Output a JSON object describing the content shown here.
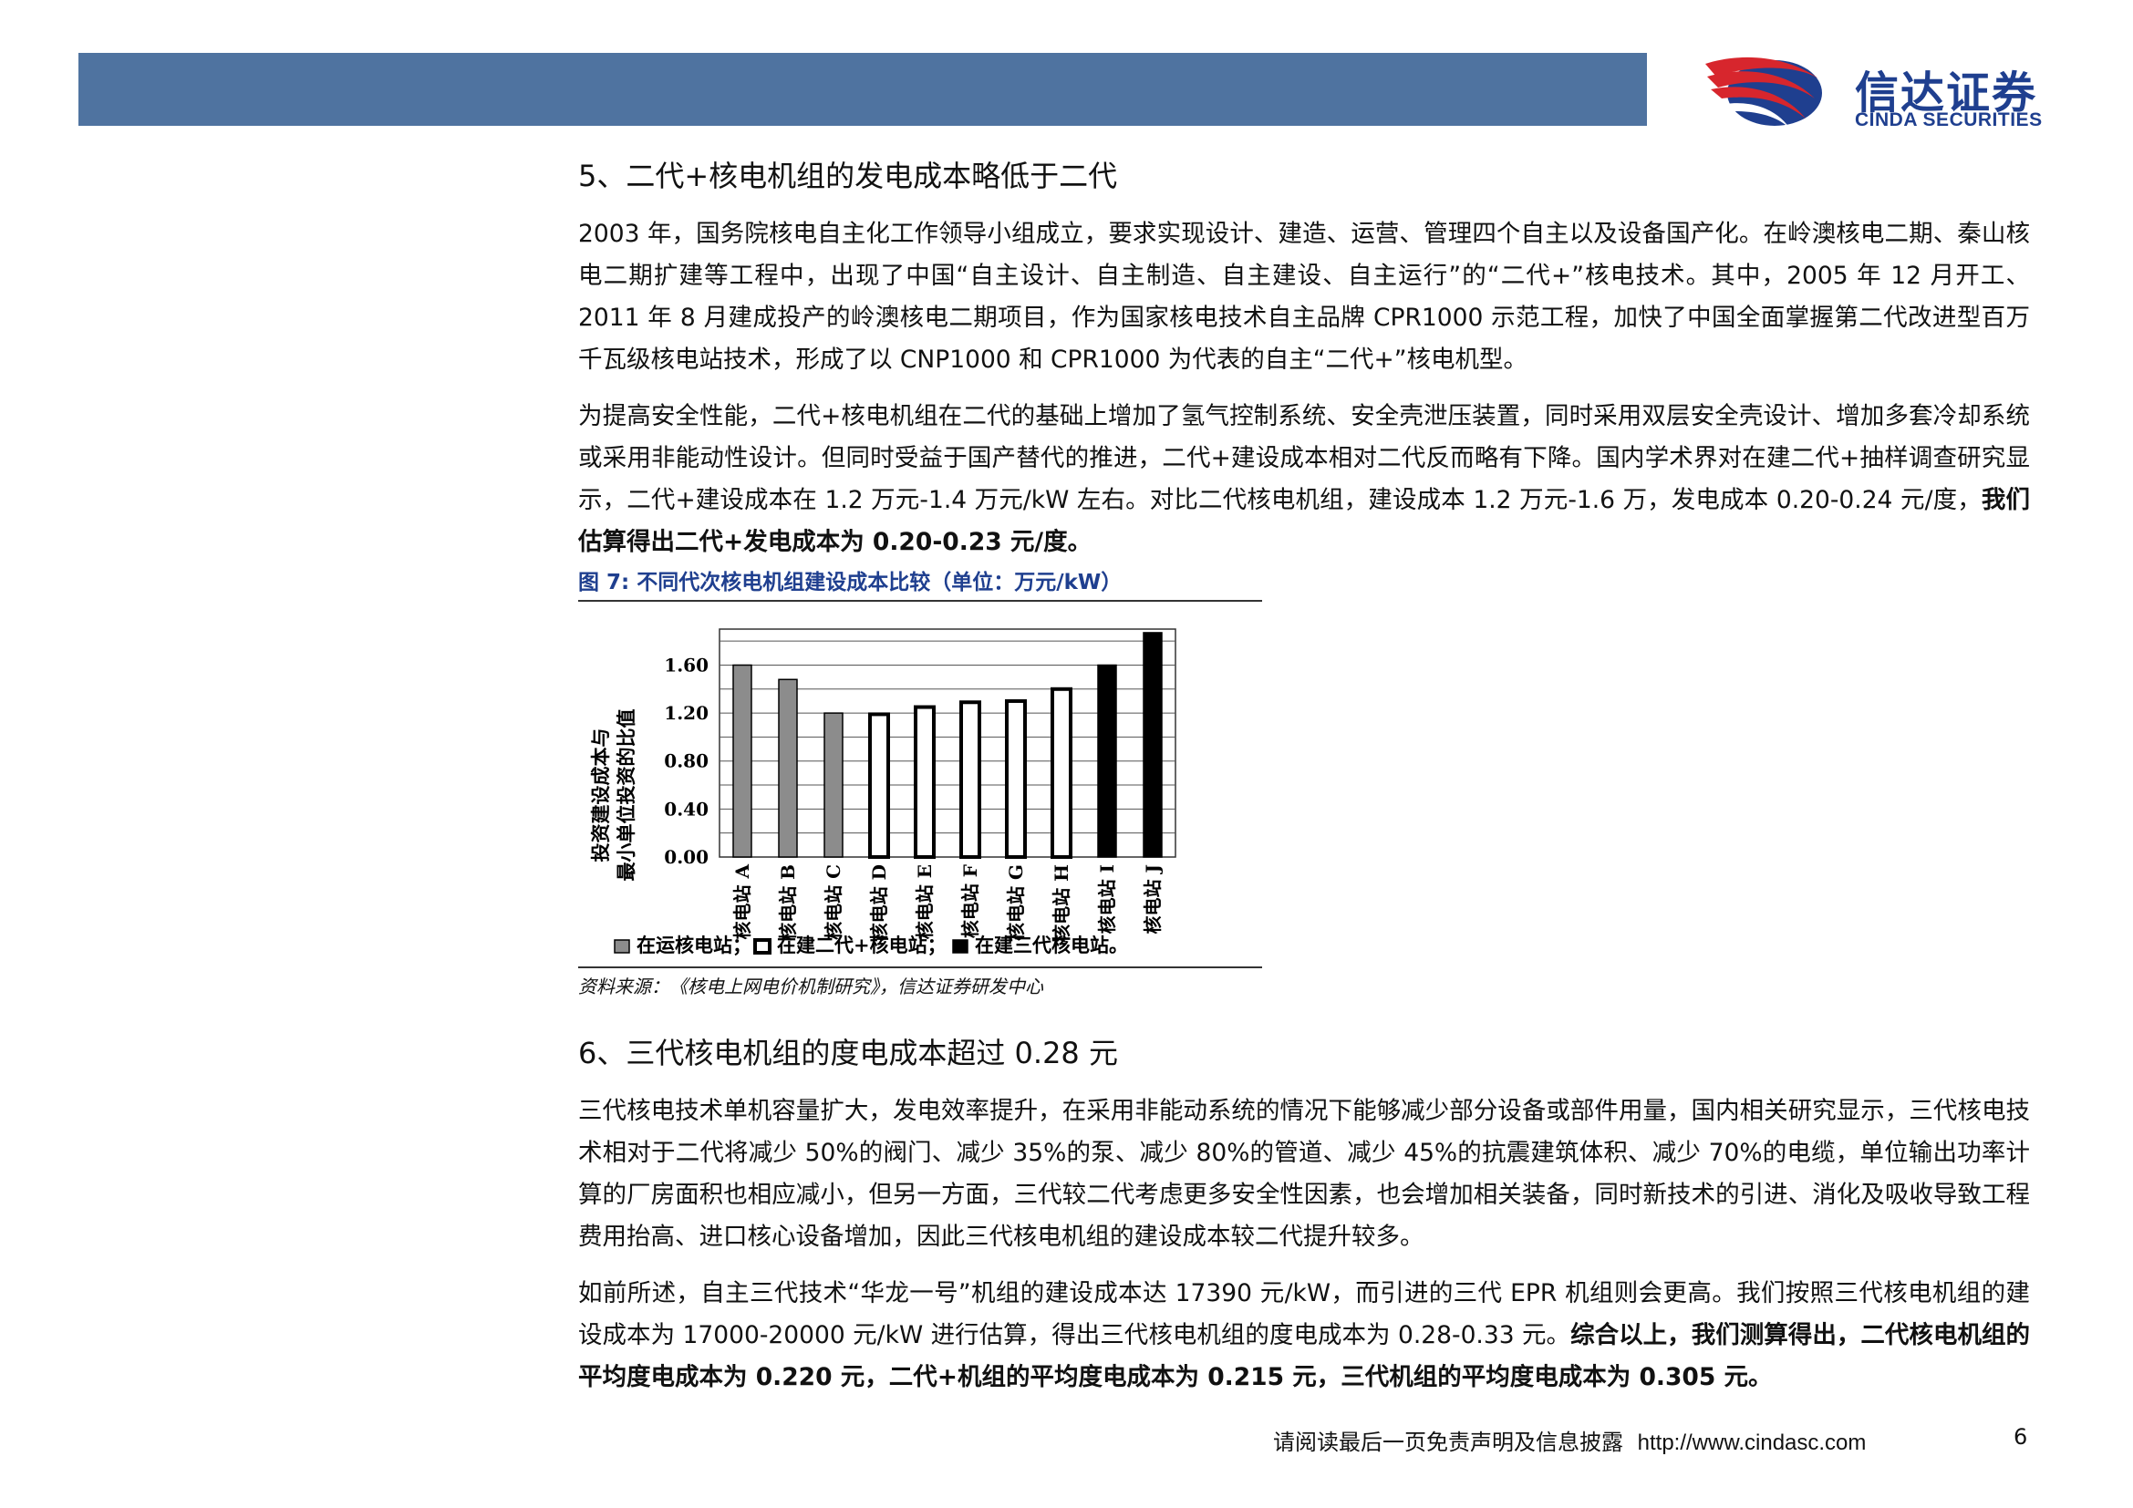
{
  "header": {
    "logo_cn": "信达证券",
    "logo_en": "CINDA SECURITIES",
    "logo_colors": {
      "swoosh_red": "#d7262d",
      "swoosh_blue": "#1f3f8f"
    },
    "bar_color": "#4f73a0"
  },
  "section5": {
    "heading": "5、二代+核电机组的发电成本略低于二代",
    "para1": "2003 年，国务院核电自主化工作领导小组成立，要求实现设计、建造、运营、管理四个自主以及设备国产化。在岭澳核电二期、秦山核电二期扩建等工程中，出现了中国“自主设计、自主制造、自主建设、自主运行”的“二代+”核电技术。其中，2005 年 12 月开工、2011 年 8 月建成投产的岭澳核电二期项目，作为国家核电技术自主品牌 CPR1000 示范工程，加快了中国全面掌握第二代改进型百万千瓦级核电站技术，形成了以 CNP1000 和 CPR1000 为代表的自主“二代+”核电机型。",
    "para2_normal": "为提高安全性能，二代+核电机组在二代的基础上增加了氢气控制系统、安全壳泄压装置，同时采用双层安全壳设计、增加多套冷却系统或采用非能动性设计。但同时受益于国产替代的推进，二代+建设成本相对二代反而略有下降。国内学术界对在建二代+抽样调查研究显示，二代+建设成本在 1.2 万元-1.4 万元/kW 左右。对比二代核电机组，建设成本 1.2 万元-1.6 万，发电成本 0.20-0.24 元/度，",
    "para2_bold": "我们估算得出二代+发电成本为 0.20-0.23 元/度。"
  },
  "figure7": {
    "caption": "图 7:  不同代次核电机组建设成本比较（单位：万元/kW）",
    "source": "资料来源：《核电上网电价机制研究》，信达证券研发中心"
  },
  "chart_data": {
    "type": "bar",
    "ylabel_line1": "投资建设成本与",
    "ylabel_line2": "最小单位投资的比值",
    "yticks": [
      "0.00",
      "0.40",
      "0.80",
      "1.20",
      "1.60"
    ],
    "ylim": [
      0,
      1.9
    ],
    "grid": true,
    "categories": [
      "核电站 A",
      "核电站 B",
      "核电站 C",
      "核电站 D",
      "核电站 E",
      "核电站 F",
      "核电站 G",
      "核电站 H",
      "核电站 I",
      "核电站 J"
    ],
    "values": [
      1.6,
      1.48,
      1.2,
      1.19,
      1.25,
      1.29,
      1.3,
      1.4,
      1.6,
      1.87
    ],
    "groups": [
      "operating",
      "operating",
      "operating",
      "gen2plus",
      "gen2plus",
      "gen2plus",
      "gen2plus",
      "gen2plus",
      "gen3",
      "gen3"
    ],
    "legend": [
      {
        "key": "operating",
        "label": "在运核电站；",
        "color": "#8c8c8c"
      },
      {
        "key": "gen2plus",
        "label": "在建二代+核电站；",
        "color": "#ffffff"
      },
      {
        "key": "gen3",
        "label": "在建三代核电站。",
        "color": "#000000"
      }
    ],
    "legend_position": "bottom"
  },
  "section6": {
    "heading": "6、三代核电机组的度电成本超过 0.28 元",
    "para1": "三代核电技术单机容量扩大，发电效率提升，在采用非能动系统的情况下能够减少部分设备或部件用量，国内相关研究显示，三代核电技术相对于二代将减少 50%的阀门、减少 35%的泵、减少 80%的管道、减少 45%的抗震建筑体积、减少 70%的电缆，单位输出功率计算的厂房面积也相应减小，但另一方面，三代较二代考虑更多安全性因素，也会增加相关装备，同时新技术的引进、消化及吸收导致工程费用抬高、进口核心设备增加，因此三代核电机组的建设成本较二代提升较多。",
    "para2_normal": "如前所述，自主三代技术“华龙一号”机组的建设成本达 17390 元/kW，而引进的三代 EPR 机组则会更高。我们按照三代核电机组的建设成本为 17000-20000 元/kW 进行估算，得出三代核电机组的度电成本为 0.28-0.33 元。",
    "para2_bold": "综合以上，我们测算得出，二代核电机组的平均度电成本为 0.220 元，二代+机组的平均度电成本为 0.215 元，三代机组的平均度电成本为 0.305 元。"
  },
  "footer": {
    "disclaimer": "请阅读最后一页免责声明及信息披露",
    "url": "http://www.cindasc.com",
    "page_number": "6"
  }
}
